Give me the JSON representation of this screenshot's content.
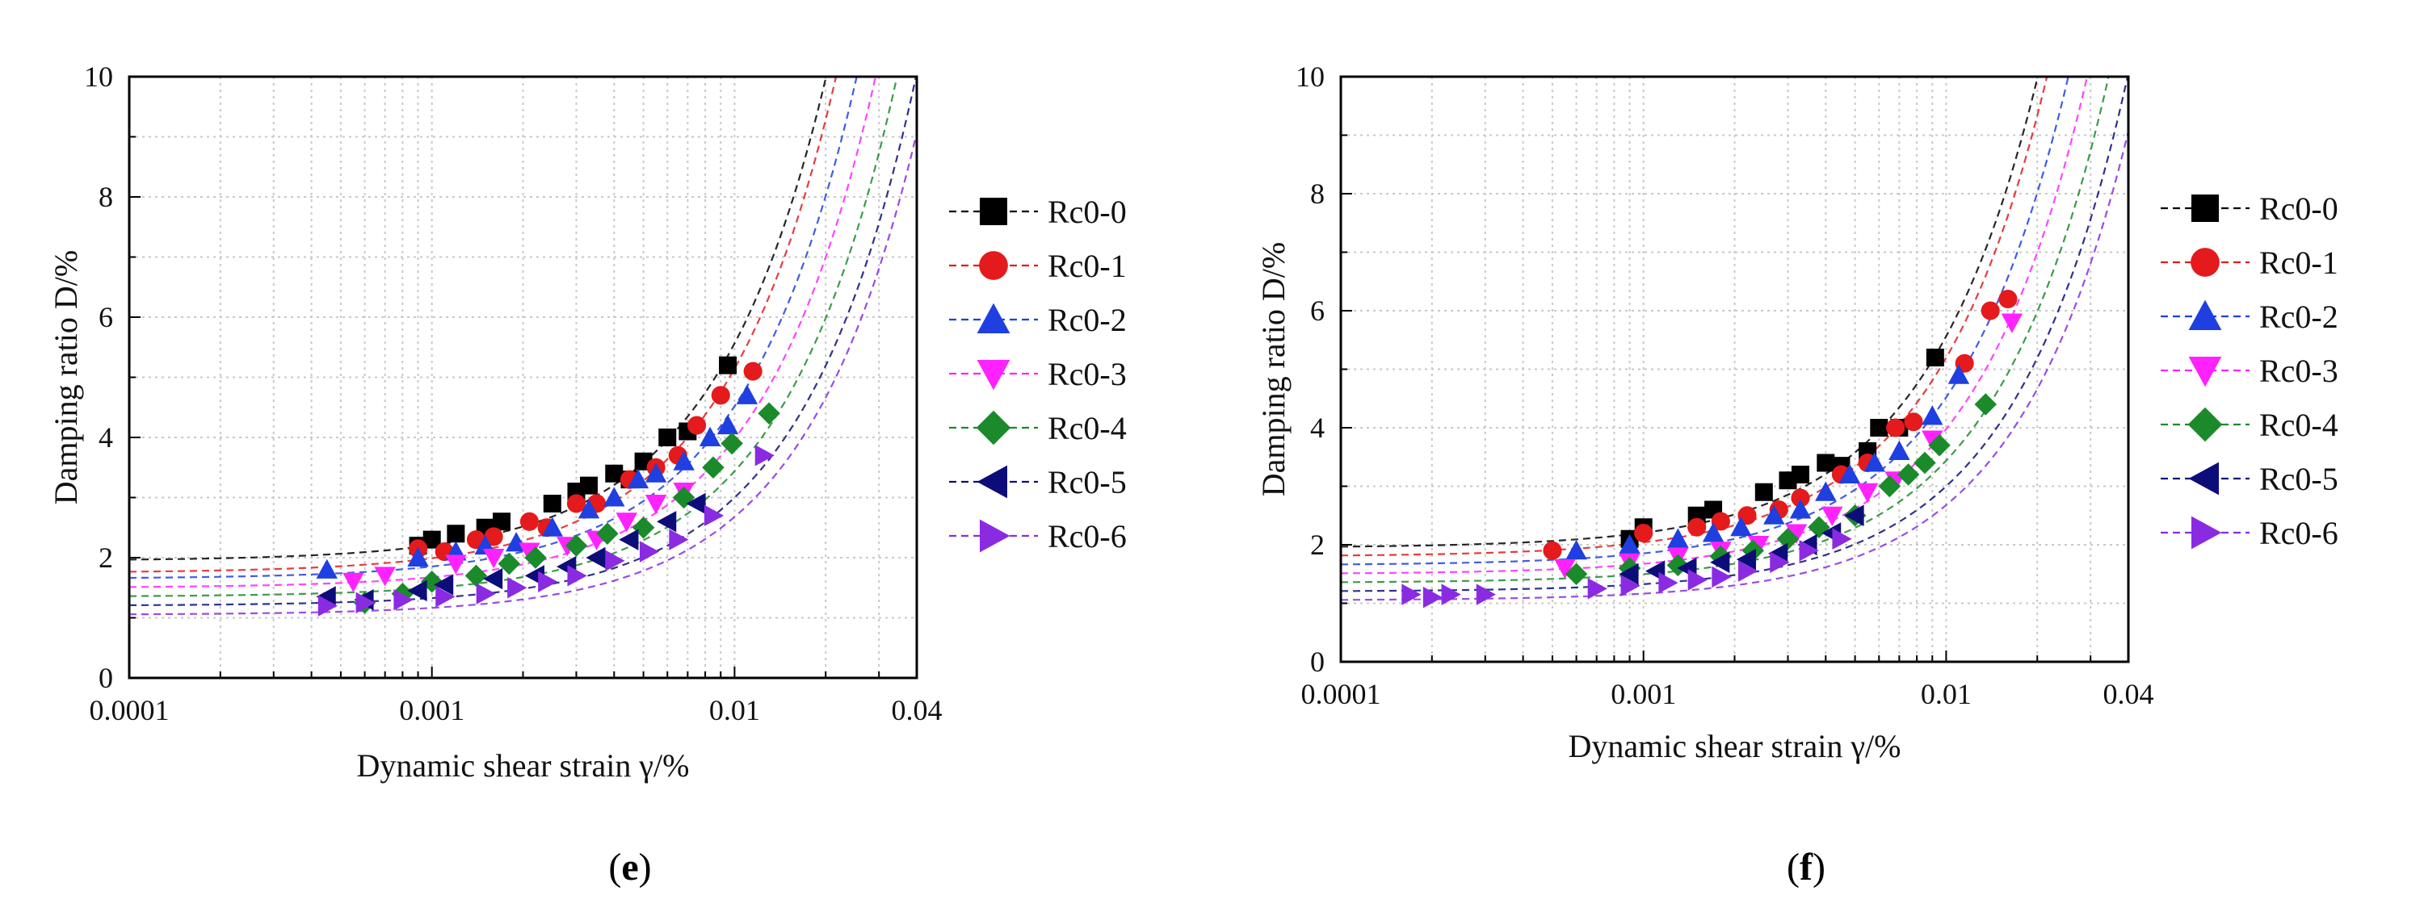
{
  "figure": {
    "panels": [
      {
        "label": "(e)",
        "label_letter": "e"
      },
      {
        "label": "(f)",
        "label_letter": "f"
      }
    ]
  },
  "chart_data": [
    {
      "type": "scatter",
      "panel": "e",
      "title": "",
      "xlabel": "Dynamic shear strain γ/%",
      "ylabel": "Damping ratio D/%",
      "xscale": "log",
      "xlim": [
        0.0001,
        0.04
      ],
      "ylim": [
        0,
        10
      ],
      "x_ticks": [
        {
          "v": 0.0001,
          "t": "0.0001"
        },
        {
          "v": 0.001,
          "t": "0.001"
        },
        {
          "v": 0.01,
          "t": "0.01"
        },
        {
          "v": 0.04,
          "t": "0.04"
        }
      ],
      "y_ticks": [
        {
          "v": 0,
          "t": "0"
        },
        {
          "v": 2,
          "t": "2"
        },
        {
          "v": 4,
          "t": "4"
        },
        {
          "v": 6,
          "t": "6"
        },
        {
          "v": 8,
          "t": "8"
        },
        {
          "v": 10,
          "t": "10"
        }
      ],
      "grid": true,
      "legend_position": "right",
      "series": [
        {
          "name": "Rc0-0",
          "color": "#000000",
          "marker": "square",
          "x": [
            0.0009,
            0.001,
            0.0012,
            0.0015,
            0.0017,
            0.0025,
            0.003,
            0.0033,
            0.004,
            0.0045,
            0.005,
            0.006,
            0.007,
            0.0095
          ],
          "y": [
            2.2,
            2.3,
            2.4,
            2.5,
            2.6,
            2.9,
            3.1,
            3.2,
            3.4,
            3.3,
            3.6,
            4.0,
            4.1,
            5.2
          ],
          "fit": {
            "d0": 1.95,
            "g": 0.009
          }
        },
        {
          "name": "Rc0-1",
          "color": "#e41a1c",
          "marker": "circle",
          "x": [
            0.0009,
            0.0011,
            0.0014,
            0.0016,
            0.0021,
            0.0024,
            0.003,
            0.0035,
            0.0045,
            0.0055,
            0.0065,
            0.0075,
            0.009,
            0.0115
          ],
          "y": [
            2.15,
            2.1,
            2.3,
            2.35,
            2.6,
            2.5,
            2.9,
            2.9,
            3.3,
            3.5,
            3.7,
            4.2,
            4.7,
            5.1
          ],
          "fit": {
            "d0": 1.75,
            "g": 0.0095
          }
        },
        {
          "name": "Rc0-2",
          "color": "#1f3fe0",
          "marker": "triangle-up",
          "x": [
            0.00045,
            0.0009,
            0.0012,
            0.0015,
            0.0019,
            0.0025,
            0.0033,
            0.004,
            0.0048,
            0.0055,
            0.0068,
            0.0083,
            0.0095,
            0.011
          ],
          "y": [
            1.8,
            2.0,
            2.1,
            2.2,
            2.25,
            2.5,
            2.8,
            3.0,
            3.3,
            3.4,
            3.6,
            4.0,
            4.2,
            4.7
          ],
          "fit": {
            "d0": 1.65,
            "g": 0.011
          }
        },
        {
          "name": "Rc0-3",
          "color": "#ff22ff",
          "marker": "triangle-down",
          "x": [
            0.00055,
            0.0007,
            0.0012,
            0.0016,
            0.0021,
            0.0028,
            0.0035,
            0.0044,
            0.0055,
            0.0068
          ],
          "y": [
            1.6,
            1.7,
            1.9,
            2.0,
            2.1,
            2.2,
            2.3,
            2.6,
            2.9,
            3.1
          ],
          "fit": {
            "d0": 1.5,
            "g": 0.0125
          }
        },
        {
          "name": "Rc0-4",
          "color": "#1a8a2a",
          "marker": "diamond",
          "x": [
            0.0006,
            0.0008,
            0.001,
            0.0014,
            0.0018,
            0.0022,
            0.003,
            0.0038,
            0.005,
            0.0068,
            0.0085,
            0.0098,
            0.013
          ],
          "y": [
            1.25,
            1.4,
            1.6,
            1.7,
            1.9,
            2.0,
            2.2,
            2.4,
            2.5,
            3.0,
            3.5,
            3.9,
            4.4
          ],
          "fit": {
            "d0": 1.35,
            "g": 0.0145
          }
        },
        {
          "name": "Rc0-5",
          "color": "#0d0d7a",
          "marker": "triangle-left",
          "x": [
            0.00045,
            0.0006,
            0.0009,
            0.0011,
            0.0016,
            0.0022,
            0.0028,
            0.0035,
            0.0045,
            0.006,
            0.0075
          ],
          "y": [
            1.35,
            1.3,
            1.45,
            1.55,
            1.65,
            1.7,
            1.85,
            2.0,
            2.3,
            2.6,
            2.9
          ],
          "fit": {
            "d0": 1.2,
            "g": 0.0165
          }
        },
        {
          "name": "Rc0-6",
          "color": "#8a2be2",
          "marker": "triangle-right",
          "x": [
            0.00045,
            0.0006,
            0.0008,
            0.0011,
            0.0015,
            0.0019,
            0.0024,
            0.003,
            0.004,
            0.0052,
            0.0065,
            0.0085,
            0.0125
          ],
          "y": [
            1.2,
            1.25,
            1.3,
            1.35,
            1.4,
            1.5,
            1.6,
            1.7,
            1.95,
            2.1,
            2.3,
            2.7,
            3.7
          ],
          "fit": {
            "d0": 1.05,
            "g": 0.018
          }
        }
      ]
    },
    {
      "type": "scatter",
      "panel": "f",
      "title": "",
      "xlabel": "Dynamic shear strain γ/%",
      "ylabel": "Damping ratio D/%",
      "xscale": "log",
      "xlim": [
        0.0001,
        0.04
      ],
      "ylim": [
        0,
        10
      ],
      "x_ticks": [
        {
          "v": 0.0001,
          "t": "0.0001"
        },
        {
          "v": 0.001,
          "t": "0.001"
        },
        {
          "v": 0.01,
          "t": "0.01"
        },
        {
          "v": 0.04,
          "t": "0.04"
        }
      ],
      "y_ticks": [
        {
          "v": 0,
          "t": "0"
        },
        {
          "v": 2,
          "t": "2"
        },
        {
          "v": 4,
          "t": "4"
        },
        {
          "v": 6,
          "t": "6"
        },
        {
          "v": 8,
          "t": "8"
        },
        {
          "v": 10,
          "t": "10"
        }
      ],
      "grid": true,
      "legend_position": "right",
      "series": [
        {
          "name": "Rc0-0",
          "color": "#000000",
          "marker": "square",
          "x": [
            0.0009,
            0.001,
            0.0015,
            0.0017,
            0.0025,
            0.003,
            0.0033,
            0.004,
            0.0045,
            0.0055,
            0.006,
            0.007,
            0.0092
          ],
          "y": [
            2.1,
            2.3,
            2.5,
            2.6,
            2.9,
            3.1,
            3.2,
            3.4,
            3.35,
            3.6,
            4.0,
            4.0,
            5.2
          ],
          "fit": {
            "d0": 1.95,
            "g": 0.009
          }
        },
        {
          "name": "Rc0-1",
          "color": "#e41a1c",
          "marker": "circle",
          "x": [
            0.0005,
            0.001,
            0.0015,
            0.0018,
            0.0022,
            0.0028,
            0.0033,
            0.0045,
            0.0055,
            0.0068,
            0.0078,
            0.0115,
            0.014,
            0.016
          ],
          "y": [
            1.9,
            2.2,
            2.3,
            2.4,
            2.5,
            2.6,
            2.8,
            3.2,
            3.4,
            4.0,
            4.1,
            5.1,
            6.0,
            6.2
          ],
          "fit": {
            "d0": 1.8,
            "g": 0.0095
          }
        },
        {
          "name": "Rc0-2",
          "color": "#1f3fe0",
          "marker": "triangle-up",
          "x": [
            0.0006,
            0.0009,
            0.0013,
            0.0017,
            0.0021,
            0.0027,
            0.0033,
            0.004,
            0.0048,
            0.0058,
            0.007,
            0.009,
            0.011
          ],
          "y": [
            1.9,
            2.0,
            2.1,
            2.2,
            2.3,
            2.5,
            2.6,
            2.9,
            3.2,
            3.4,
            3.6,
            4.2,
            4.9
          ],
          "fit": {
            "d0": 1.65,
            "g": 0.011
          }
        },
        {
          "name": "Rc0-3",
          "color": "#ff22ff",
          "marker": "triangle-down",
          "x": [
            0.00055,
            0.0009,
            0.0013,
            0.0018,
            0.0024,
            0.0032,
            0.0042,
            0.0055,
            0.0068,
            0.009,
            0.0165
          ],
          "y": [
            1.6,
            1.7,
            1.8,
            1.9,
            2.0,
            2.2,
            2.5,
            2.9,
            3.1,
            3.8,
            5.8
          ],
          "fit": {
            "d0": 1.5,
            "g": 0.0125
          }
        },
        {
          "name": "Rc0-4",
          "color": "#1a8a2a",
          "marker": "diamond",
          "x": [
            0.0006,
            0.0009,
            0.0013,
            0.0018,
            0.0023,
            0.003,
            0.0038,
            0.005,
            0.0065,
            0.0075,
            0.0085,
            0.0095,
            0.0135
          ],
          "y": [
            1.5,
            1.6,
            1.65,
            1.8,
            1.9,
            2.1,
            2.3,
            2.5,
            3.0,
            3.2,
            3.4,
            3.7,
            4.4
          ],
          "fit": {
            "d0": 1.35,
            "g": 0.0145
          }
        },
        {
          "name": "Rc0-5",
          "color": "#0d0d7a",
          "marker": "triangle-left",
          "x": [
            0.0009,
            0.0011,
            0.0014,
            0.0018,
            0.0022,
            0.0028,
            0.0035,
            0.0042,
            0.005
          ],
          "y": [
            1.5,
            1.55,
            1.6,
            1.7,
            1.75,
            1.85,
            2.0,
            2.2,
            2.5
          ],
          "fit": {
            "d0": 1.2,
            "g": 0.0165
          }
        },
        {
          "name": "Rc0-6",
          "color": "#8a2be2",
          "marker": "triangle-right",
          "x": [
            0.00017,
            0.0002,
            0.00023,
            0.0003,
            0.0007,
            0.0009,
            0.0012,
            0.0015,
            0.0018,
            0.0022,
            0.0028,
            0.0035,
            0.0045
          ],
          "y": [
            1.15,
            1.1,
            1.15,
            1.15,
            1.25,
            1.3,
            1.35,
            1.4,
            1.45,
            1.55,
            1.7,
            1.9,
            2.1
          ],
          "fit": {
            "d0": 1.05,
            "g": 0.018
          }
        }
      ]
    }
  ]
}
